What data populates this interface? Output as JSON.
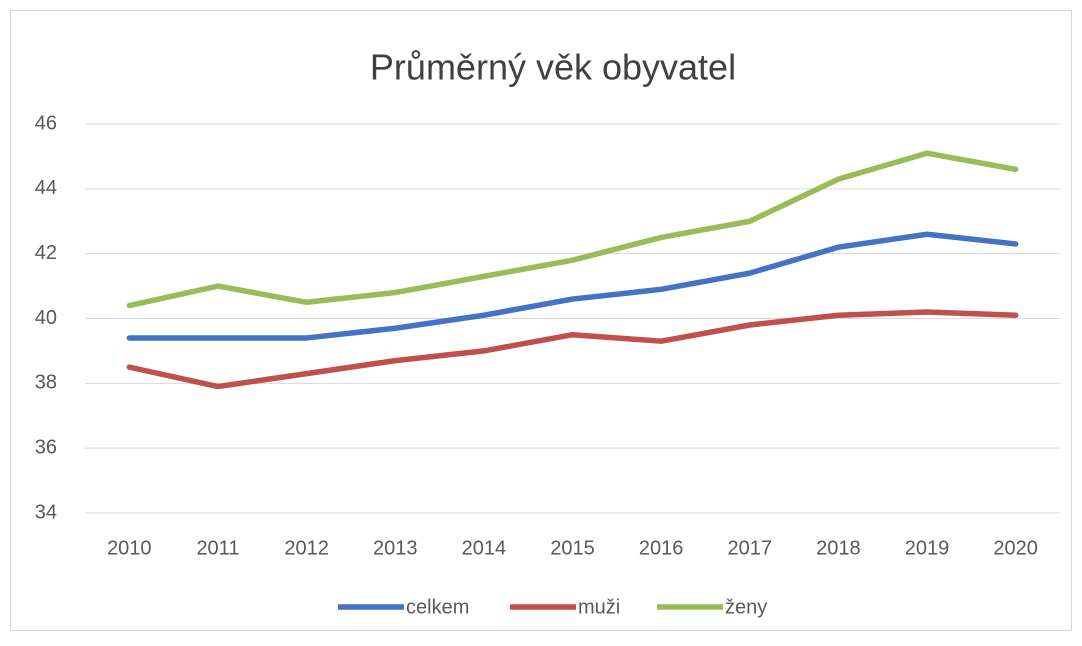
{
  "chart_data": {
    "type": "line",
    "title": "Průměrný věk obyvatel",
    "categories": [
      "2010",
      "2011",
      "2012",
      "2013",
      "2014",
      "2015",
      "2016",
      "2017",
      "2018",
      "2019",
      "2020"
    ],
    "series": [
      {
        "name": "celkem",
        "color": "#4472c4",
        "values": [
          39.4,
          39.4,
          39.4,
          39.7,
          40.1,
          40.6,
          40.9,
          41.4,
          42.2,
          42.6,
          42.3
        ]
      },
      {
        "name": "muži",
        "color": "#c0504d",
        "values": [
          38.5,
          37.9,
          38.3,
          38.7,
          39.0,
          39.5,
          39.3,
          39.8,
          40.1,
          40.2,
          40.1
        ]
      },
      {
        "name": "ženy",
        "color": "#9bbb59",
        "values": [
          40.4,
          41.0,
          40.5,
          40.8,
          41.3,
          41.8,
          42.5,
          43.0,
          44.3,
          45.1,
          44.6
        ]
      }
    ],
    "ylim": [
      34,
      46
    ],
    "yticks": [
      34,
      36,
      38,
      40,
      42,
      44,
      46
    ],
    "grid": true,
    "legend": "bottom"
  }
}
